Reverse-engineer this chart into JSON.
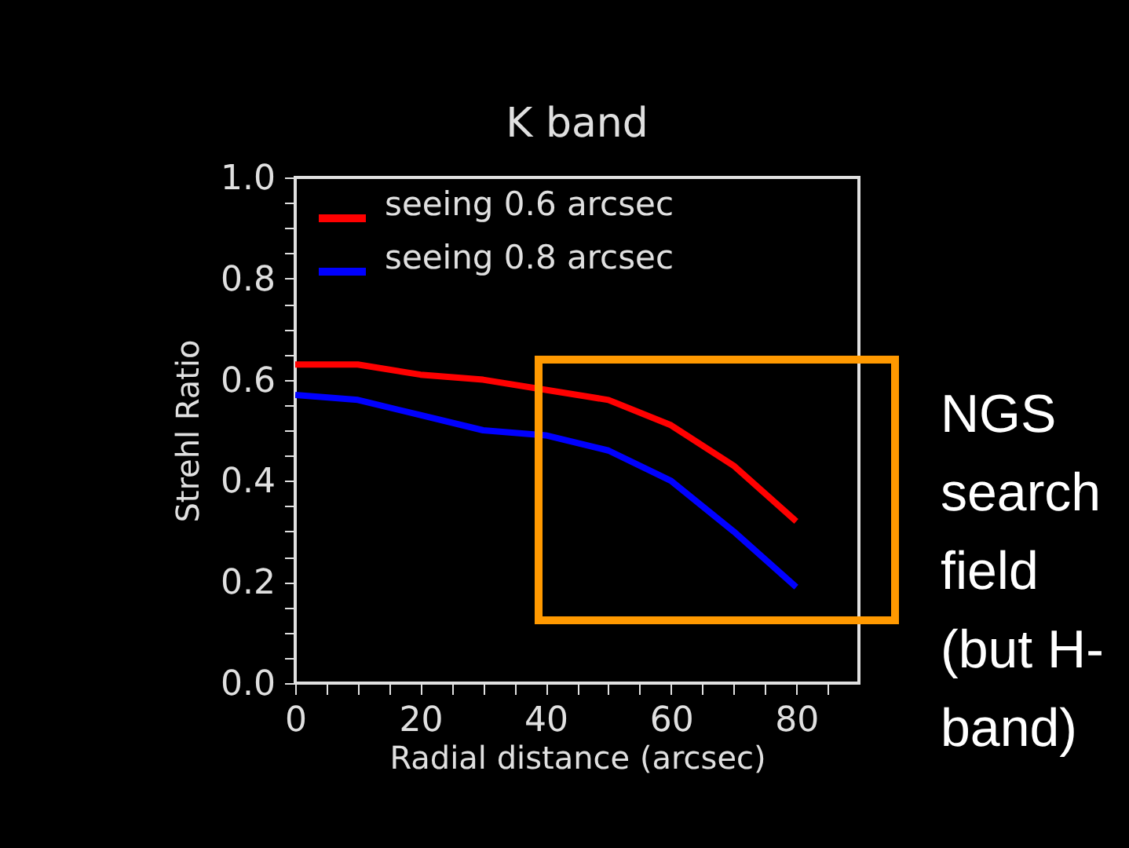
{
  "chart_data": {
    "type": "line",
    "title": "K band",
    "xlabel": "Radial distance (arcsec)",
    "ylabel": "Strehl Ratio",
    "x": [
      0,
      10,
      20,
      30,
      40,
      50,
      60,
      70,
      80
    ],
    "series": [
      {
        "name": "seeing 0.6 arcsec",
        "color": "#ff0000",
        "values": [
          0.63,
          0.63,
          0.61,
          0.6,
          0.58,
          0.56,
          0.51,
          0.43,
          0.32
        ]
      },
      {
        "name": "seeing 0.8 arcsec",
        "color": "#0000ff",
        "values": [
          0.57,
          0.56,
          0.53,
          0.5,
          0.49,
          0.46,
          0.4,
          0.3,
          0.19
        ]
      }
    ],
    "xlim": [
      0,
      90
    ],
    "xticks": [
      0,
      {
        "value": 5,
        "label": null
      },
      {
        "value": 10,
        "label": null
      },
      {
        "value": 15,
        "label": null
      },
      20,
      {
        "value": 25,
        "label": null
      },
      {
        "value": 30,
        "label": null
      },
      {
        "value": 35,
        "label": null
      },
      40,
      {
        "value": 45,
        "label": null
      },
      {
        "value": 50,
        "label": null
      },
      {
        "value": 55,
        "label": null
      },
      60,
      {
        "value": 65,
        "label": null
      },
      {
        "value": 70,
        "label": null
      },
      {
        "value": 75,
        "label": null
      },
      80,
      {
        "value": 85,
        "label": null
      }
    ],
    "ylim": [
      0,
      1
    ],
    "yticks": [
      {
        "value": 0,
        "label": "0.0"
      },
      {
        "value": 0.05,
        "label": null
      },
      {
        "value": 0.1,
        "label": null
      },
      {
        "value": 0.15,
        "label": null
      },
      {
        "value": 0.2,
        "label": "0.2"
      },
      {
        "value": 0.25,
        "label": null
      },
      {
        "value": 0.3,
        "label": null
      },
      {
        "value": 0.35,
        "label": null
      },
      {
        "value": 0.4,
        "label": "0.4"
      },
      {
        "value": 0.45,
        "label": null
      },
      {
        "value": 0.5,
        "label": null
      },
      {
        "value": 0.55,
        "label": null
      },
      {
        "value": 0.6,
        "label": "0.6"
      },
      {
        "value": 0.65,
        "label": null
      },
      {
        "value": 0.7,
        "label": null
      },
      {
        "value": 0.75,
        "label": null
      },
      {
        "value": 0.8,
        "label": "0.8"
      },
      {
        "value": 0.85,
        "label": null
      },
      {
        "value": 0.9,
        "label": null
      },
      {
        "value": 0.95,
        "label": null
      },
      {
        "value": 1,
        "label": "1.0"
      }
    ],
    "legend": "top left",
    "grid": false,
    "marker": "none",
    "line_style": "solid",
    "annotations": [
      "NGS\nsearch\nfield\n(but H-\nband)"
    ]
  }
}
